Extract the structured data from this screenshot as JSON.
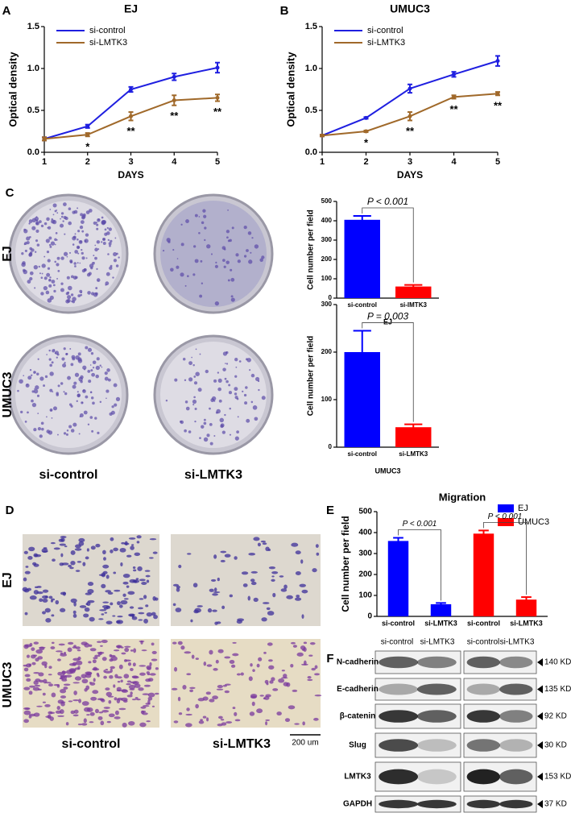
{
  "chart_data": [
    {
      "type": "line",
      "panel": "A",
      "title": "EJ",
      "xlabel": "DAYS",
      "ylabel": "Optical density",
      "x": [
        1,
        2,
        3,
        4,
        5
      ],
      "xlim": [
        1,
        5
      ],
      "xticks": [
        1,
        2,
        3,
        4,
        5
      ],
      "ylim": [
        0,
        1.5
      ],
      "yticks": [
        {
          "value": 0,
          "label": "0.0"
        },
        0.5,
        {
          "value": 1,
          "label": "1.0"
        },
        1.5
      ],
      "legend": "upper left",
      "series": [
        {
          "name": "si-control",
          "color": "#1f1fe0",
          "values": [
            0.16,
            0.31,
            0.75,
            0.9,
            1.01
          ],
          "errors": [
            0.02,
            0.02,
            0.03,
            0.04,
            0.06
          ]
        },
        {
          "name": "si-LMTK3",
          "color": "#a0692a",
          "values": [
            0.16,
            0.21,
            0.43,
            0.62,
            0.65
          ],
          "errors": [
            0.02,
            0.02,
            0.05,
            0.06,
            0.04
          ]
        }
      ],
      "annotations": [
        null,
        "*",
        "**",
        "**",
        "**"
      ]
    },
    {
      "type": "line",
      "panel": "B",
      "title": "UMUC3",
      "xlabel": "DAYS",
      "ylabel": "Optical density",
      "x": [
        1,
        2,
        3,
        4,
        5
      ],
      "xlim": [
        1,
        5
      ],
      "xticks": [
        1,
        2,
        3,
        4,
        5
      ],
      "ylim": [
        0,
        1.5
      ],
      "yticks": [
        {
          "value": 0,
          "label": "0.0"
        },
        0.5,
        {
          "value": 1,
          "label": "1.0"
        },
        1.5
      ],
      "legend": "upper left",
      "series": [
        {
          "name": "si-control",
          "color": "#1f1fe0",
          "values": [
            0.2,
            0.41,
            0.76,
            0.93,
            1.09
          ],
          "errors": [
            0.01,
            0.01,
            0.05,
            0.03,
            0.06
          ]
        },
        {
          "name": "si-LMTK3",
          "color": "#a0692a",
          "values": [
            0.2,
            0.25,
            0.43,
            0.66,
            0.7
          ],
          "errors": [
            0.01,
            0.01,
            0.05,
            0.02,
            0.02
          ]
        }
      ],
      "annotations": [
        null,
        "*",
        "**",
        "**",
        "**"
      ]
    },
    {
      "type": "bar",
      "xlabel": "EJ",
      "ylabel": "Cell number per field",
      "categories": [
        "si-control",
        "si-lMTK3"
      ],
      "values": [
        405,
        60
      ],
      "errors": [
        20,
        8
      ],
      "colors": [
        "#0000ff",
        "#ff0000"
      ],
      "ylim": [
        0,
        500
      ],
      "yticks": [
        0,
        100,
        200,
        300,
        400,
        500
      ],
      "annotations": [
        "P < 0.001"
      ]
    },
    {
      "type": "bar",
      "xlabel": "UMUC3",
      "ylabel": "Cell number per field",
      "categories": [
        "si-control",
        "si-LMTK3"
      ],
      "values": [
        200,
        42
      ],
      "errors": [
        45,
        6
      ],
      "colors": [
        "#0000ff",
        "#ff0000"
      ],
      "ylim": [
        0,
        300
      ],
      "yticks": [
        0,
        100,
        200,
        300
      ],
      "annotations": [
        "P = 0.003"
      ]
    },
    {
      "type": "bar",
      "panel": "E",
      "title": "Migration",
      "ylabel": "Cell number per field",
      "categories": [
        "si-control",
        "si-LMTK3",
        "si-control",
        "si-LMTK3"
      ],
      "series": [
        {
          "name": "EJ",
          "color": "#0000ff",
          "values": [
            360,
            58,
            null,
            null
          ],
          "errors": [
            15,
            6,
            null,
            null
          ]
        },
        {
          "name": "UMUC3",
          "color": "#ff0000",
          "values": [
            null,
            null,
            395,
            80
          ],
          "errors": [
            null,
            null,
            15,
            12
          ]
        }
      ],
      "ylim": [
        0,
        500
      ],
      "yticks": [
        0,
        100,
        200,
        300,
        400,
        500
      ],
      "legend": "upper right",
      "annotations": [
        "P < 0.001",
        "P < 0.001"
      ]
    }
  ],
  "figure": {
    "C": {
      "label": "C",
      "rows": [
        "EJ",
        "UMUC3"
      ],
      "columns": [
        "si-control",
        "si-LMTK3"
      ]
    },
    "D": {
      "label": "D",
      "rows": [
        "EJ",
        "UMUC3"
      ],
      "columns": [
        "si-control",
        "si-LMTK3"
      ],
      "scale_bar": "200 um"
    },
    "F": {
      "label": "F",
      "columns": [
        "si-control",
        "si-LMTK3",
        "si-control",
        "si-LMTK3"
      ],
      "proteins": [
        "N-cadherin",
        "E-cadherin",
        "β-catenin",
        "Slug",
        "LMTK3",
        "GAPDH"
      ],
      "sizes": [
        "140 KD",
        "135 KD",
        "92 KD",
        "30 KD",
        "153 KD",
        "37 KD"
      ]
    }
  }
}
